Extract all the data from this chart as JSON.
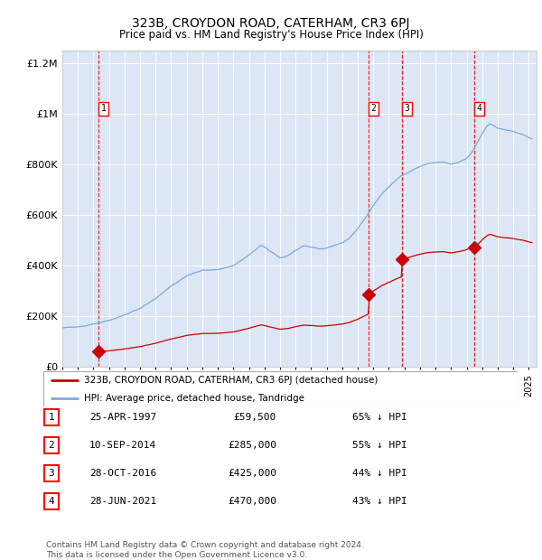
{
  "title": "323B, CROYDON ROAD, CATERHAM, CR3 6PJ",
  "subtitle": "Price paid vs. HM Land Registry's House Price Index (HPI)",
  "title_fontsize": 10,
  "subtitle_fontsize": 8.5,
  "background_color": "#ffffff",
  "plot_bg_color": "#dce6f5",
  "hpi_color": "#7aaadd",
  "price_color": "#cc0000",
  "ylim": [
    0,
    1250000
  ],
  "xlim_start": 1995.0,
  "xlim_end": 2025.5,
  "purchases": [
    {
      "label": "1",
      "date_num": 1997.32,
      "price": 59500
    },
    {
      "label": "2",
      "date_num": 2014.69,
      "price": 285000
    },
    {
      "label": "3",
      "date_num": 2016.83,
      "price": 425000
    },
    {
      "label": "4",
      "date_num": 2021.49,
      "price": 470000
    }
  ],
  "legend_entries": [
    "323B, CROYDON ROAD, CATERHAM, CR3 6PJ (detached house)",
    "HPI: Average price, detached house, Tandridge"
  ],
  "table_rows": [
    [
      "1",
      "25-APR-1997",
      "£59,500",
      "65% ↓ HPI"
    ],
    [
      "2",
      "10-SEP-2014",
      "£285,000",
      "55% ↓ HPI"
    ],
    [
      "3",
      "28-OCT-2016",
      "£425,000",
      "44% ↓ HPI"
    ],
    [
      "4",
      "28-JUN-2021",
      "£470,000",
      "43% ↓ HPI"
    ]
  ],
  "footer": "Contains HM Land Registry data © Crown copyright and database right 2024.\nThis data is licensed under the Open Government Licence v3.0.",
  "yticks": [
    0,
    200000,
    400000,
    600000,
    800000,
    1000000,
    1200000
  ],
  "ytick_labels": [
    "£0",
    "£200K",
    "£400K",
    "£600K",
    "£800K",
    "£1M",
    "£1.2M"
  ],
  "hpi_anchors": [
    [
      1995.0,
      152000
    ],
    [
      1996.0,
      160000
    ],
    [
      1997.0,
      170000
    ],
    [
      1998.0,
      185000
    ],
    [
      1999.0,
      205000
    ],
    [
      2000.0,
      230000
    ],
    [
      2001.0,
      270000
    ],
    [
      2002.0,
      320000
    ],
    [
      2003.0,
      360000
    ],
    [
      2004.0,
      380000
    ],
    [
      2005.0,
      385000
    ],
    [
      2006.0,
      400000
    ],
    [
      2007.0,
      440000
    ],
    [
      2007.8,
      480000
    ],
    [
      2008.5,
      450000
    ],
    [
      2009.0,
      430000
    ],
    [
      2009.5,
      440000
    ],
    [
      2010.0,
      460000
    ],
    [
      2010.5,
      475000
    ],
    [
      2011.0,
      470000
    ],
    [
      2011.5,
      465000
    ],
    [
      2012.0,
      470000
    ],
    [
      2012.5,
      480000
    ],
    [
      2013.0,
      490000
    ],
    [
      2013.5,
      510000
    ],
    [
      2014.0,
      545000
    ],
    [
      2014.5,
      590000
    ],
    [
      2014.7,
      610000
    ],
    [
      2015.0,
      640000
    ],
    [
      2015.5,
      680000
    ],
    [
      2016.0,
      710000
    ],
    [
      2016.5,
      740000
    ],
    [
      2016.8,
      755000
    ],
    [
      2017.0,
      760000
    ],
    [
      2017.5,
      775000
    ],
    [
      2018.0,
      790000
    ],
    [
      2018.5,
      800000
    ],
    [
      2019.0,
      805000
    ],
    [
      2019.5,
      808000
    ],
    [
      2020.0,
      800000
    ],
    [
      2020.5,
      810000
    ],
    [
      2021.0,
      825000
    ],
    [
      2021.3,
      845000
    ],
    [
      2021.5,
      865000
    ],
    [
      2022.0,
      920000
    ],
    [
      2022.3,
      950000
    ],
    [
      2022.5,
      960000
    ],
    [
      2023.0,
      940000
    ],
    [
      2023.5,
      935000
    ],
    [
      2024.0,
      930000
    ],
    [
      2024.5,
      920000
    ],
    [
      2025.0,
      905000
    ],
    [
      2025.2,
      900000
    ]
  ]
}
